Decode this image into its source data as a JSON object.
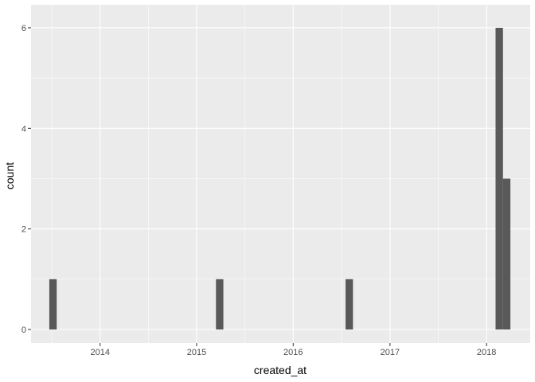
{
  "chart_data": {
    "type": "bar",
    "title": "",
    "xlabel": "created_at",
    "ylabel": "count",
    "x_ticks": [
      "2014",
      "2015",
      "2016",
      "2017",
      "2018"
    ],
    "y_ticks": [
      "0",
      "2",
      "4",
      "6"
    ],
    "xlim": [
      "2013-04-15",
      "2018-06-15"
    ],
    "ylim": [
      0,
      6.3
    ],
    "bin_width_days": 28,
    "bins": [
      {
        "start": "2013-06-23",
        "end": "2013-07-21",
        "count": 1
      },
      {
        "start": "2015-03-15",
        "end": "2015-04-12",
        "count": 1
      },
      {
        "start": "2016-07-17",
        "end": "2016-08-14",
        "count": 1
      },
      {
        "start": "2018-02-04",
        "end": "2018-03-04",
        "count": 6
      },
      {
        "start": "2018-03-04",
        "end": "2018-04-01",
        "count": 3
      }
    ],
    "grid": true,
    "colors": {
      "bar": "#595959",
      "panel": "#ebebeb",
      "grid": "#ffffff"
    }
  }
}
